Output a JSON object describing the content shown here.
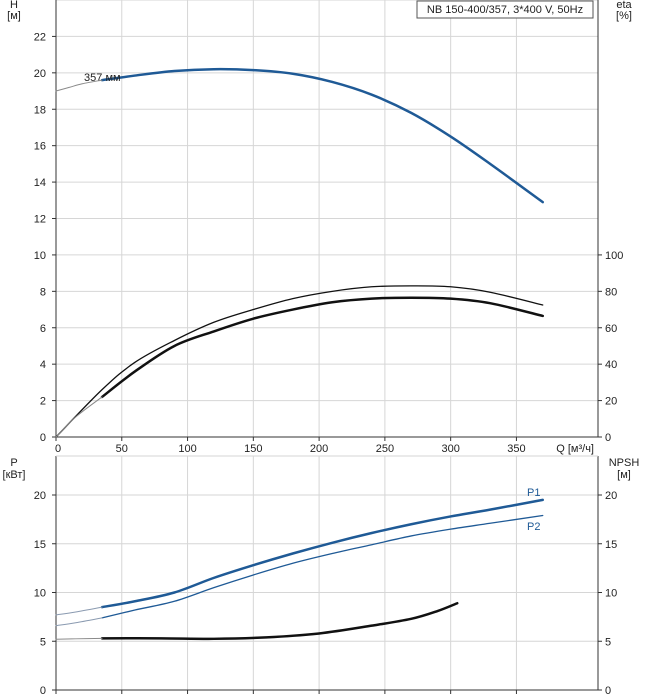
{
  "chart_data": [
    {
      "type": "line",
      "title": "NB 150-400/357, 3*400 V, 50Hz",
      "x_axis": {
        "label": "Q [м³/ч]",
        "ticks": [
          0,
          50,
          100,
          150,
          200,
          250,
          300,
          350
        ],
        "range": [
          0,
          412
        ]
      },
      "left_axis": {
        "label_top": "H",
        "label_unit": "[м]",
        "ticks": [
          0,
          2,
          4,
          6,
          8,
          10,
          12,
          14,
          16,
          18,
          20,
          22
        ],
        "range": [
          0,
          24
        ]
      },
      "right_axis": {
        "label_top": "eta",
        "label_unit": "[%]",
        "ticks": [
          0,
          20,
          40,
          60,
          80,
          100
        ],
        "range": [
          0,
          100
        ]
      },
      "grid": true,
      "series": [
        {
          "name": "357 мм",
          "axis": "left",
          "color": "#1f5a96",
          "width": 2.5,
          "x": [
            35,
            60,
            90,
            120,
            150,
            180,
            210,
            240,
            270,
            300,
            330,
            370
          ],
          "y": [
            19.6,
            19.85,
            20.1,
            20.2,
            20.15,
            19.95,
            19.5,
            18.8,
            17.8,
            16.5,
            15.0,
            12.9
          ]
        },
        {
          "name": "",
          "axis": "left",
          "color": "#8a8a8a",
          "width": 1,
          "dashed_ext": true,
          "x": [
            0,
            10,
            20,
            35
          ],
          "y": [
            19.0,
            19.2,
            19.4,
            19.6
          ]
        },
        {
          "name": "",
          "axis": "right",
          "color": "#111111",
          "width": 1.3,
          "x": [
            0,
            35,
            60,
            90,
            120,
            150,
            180,
            210,
            240,
            270,
            300,
            330,
            370
          ],
          "y": [
            0,
            26,
            41,
            53,
            63,
            70,
            76,
            80,
            82.5,
            83,
            82.5,
            79.5,
            72.5
          ]
        },
        {
          "name": "",
          "axis": "right",
          "color": "#111111",
          "width": 2.5,
          "x": [
            35,
            60,
            90,
            120,
            150,
            180,
            210,
            240,
            270,
            300,
            330,
            370
          ],
          "y": [
            22,
            36,
            50,
            58,
            65,
            70,
            74,
            76,
            76.5,
            76,
            73.5,
            66.5
          ]
        },
        {
          "name": "",
          "axis": "right",
          "color": "#8a8a8a",
          "width": 1,
          "x": [
            0,
            15,
            35
          ],
          "y": [
            0,
            11,
            22
          ]
        }
      ]
    },
    {
      "type": "line",
      "x_axis": {
        "ticks": [
          0,
          50,
          100,
          150,
          200,
          250,
          300,
          350
        ],
        "range": [
          0,
          412
        ]
      },
      "left_axis": {
        "label_top": "P",
        "label_unit": "[кВт]",
        "ticks": [
          0,
          5,
          10,
          15,
          20
        ],
        "range": [
          0,
          24
        ]
      },
      "right_axis": {
        "label_top": "NPSH",
        "label_unit": "[м]",
        "ticks": [
          0,
          5,
          10,
          15,
          20
        ],
        "range": [
          0,
          24
        ]
      },
      "grid": true,
      "series": [
        {
          "name": "P1",
          "axis": "left",
          "color": "#1f5a96",
          "width": 2.5,
          "label_at": [
            355,
            20.3
          ],
          "x": [
            35,
            60,
            90,
            120,
            150,
            180,
            210,
            240,
            270,
            300,
            330,
            370
          ],
          "y": [
            8.5,
            9.1,
            10.0,
            11.5,
            12.8,
            14.0,
            15.1,
            16.1,
            17.0,
            17.8,
            18.5,
            19.5
          ]
        },
        {
          "name": "",
          "axis": "left",
          "color": "#8a9ab0",
          "width": 1,
          "x": [
            0,
            15,
            35
          ],
          "y": [
            7.7,
            8.0,
            8.5
          ]
        },
        {
          "name": "P2",
          "axis": "left",
          "color": "#1f5a96",
          "width": 1.3,
          "label_at": [
            355,
            16.8
          ],
          "x": [
            35,
            60,
            90,
            120,
            150,
            180,
            210,
            240,
            270,
            300,
            330,
            370
          ],
          "y": [
            7.4,
            8.2,
            9.1,
            10.5,
            11.8,
            13.0,
            14.0,
            14.9,
            15.8,
            16.5,
            17.1,
            17.9
          ]
        },
        {
          "name": "",
          "axis": "left",
          "color": "#8a9ab0",
          "width": 1,
          "x": [
            0,
            15,
            35
          ],
          "y": [
            6.6,
            6.9,
            7.4
          ]
        },
        {
          "name": "",
          "axis": "right",
          "color": "#111111",
          "width": 2.5,
          "x": [
            35,
            80,
            120,
            160,
            200,
            240,
            270,
            290,
            305
          ],
          "y": [
            5.3,
            5.3,
            5.25,
            5.4,
            5.8,
            6.6,
            7.3,
            8.1,
            8.9
          ]
        },
        {
          "name": "",
          "axis": "right",
          "color": "#8a8a8a",
          "width": 1,
          "x": [
            0,
            15,
            35
          ],
          "y": [
            5.2,
            5.25,
            5.3
          ]
        }
      ]
    }
  ]
}
